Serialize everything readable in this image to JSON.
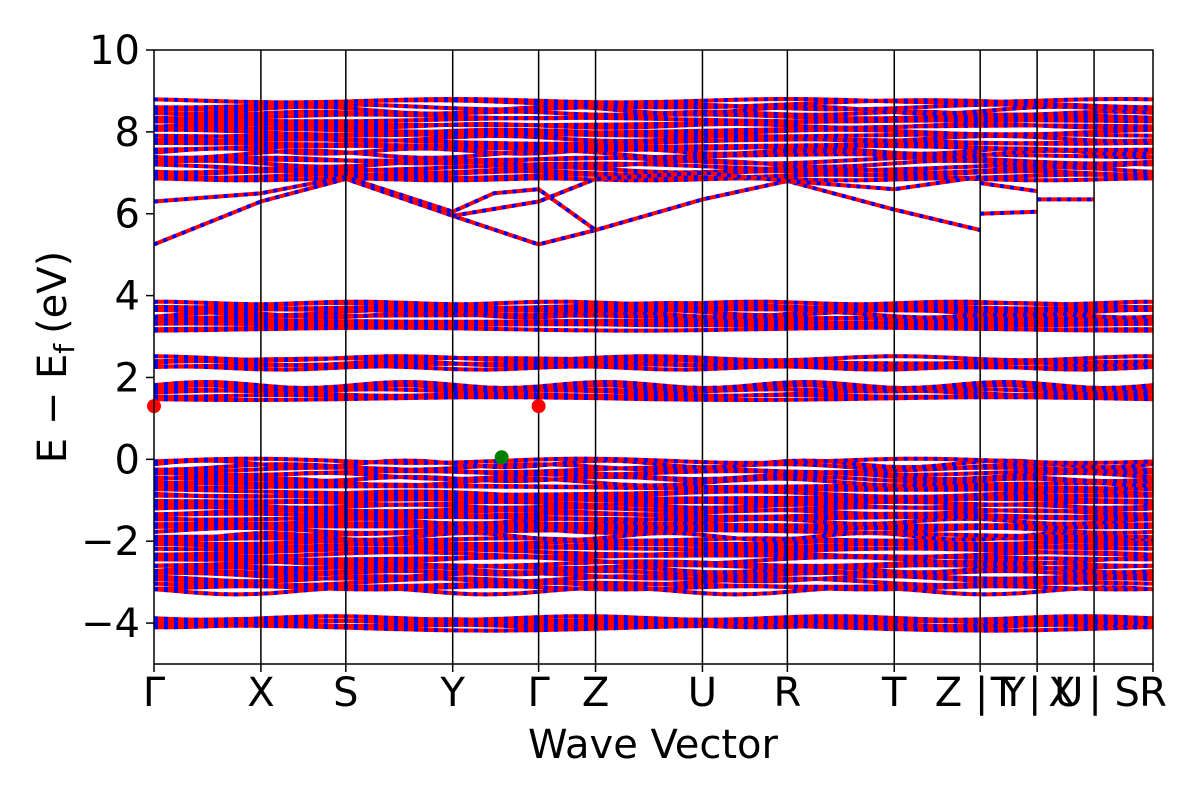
{
  "chart_data": {
    "type": "line",
    "xlabel": "Wave Vector",
    "ylabel_main": "E − E",
    "ylabel_sub": "f",
    "ylabel_unit": "(eV)",
    "ylim": [
      -5,
      10
    ],
    "yticks": [
      {
        "value": 10,
        "label": "10"
      },
      {
        "value": 8,
        "label": "8"
      },
      {
        "value": 6,
        "label": "6"
      },
      {
        "value": 4,
        "label": "4"
      },
      {
        "value": 2,
        "label": "2"
      },
      {
        "value": 0,
        "label": "0"
      },
      {
        "value": -2,
        "label": "−2"
      },
      {
        "value": -4,
        "label": "−4"
      }
    ],
    "xlim": [
      0,
      1
    ],
    "kpoints": [
      {
        "label": "Γ",
        "x": 0.0
      },
      {
        "label": "X",
        "x": 0.107
      },
      {
        "label": "S",
        "x": 0.192
      },
      {
        "label": "Y",
        "x": 0.299
      },
      {
        "label": "Γ",
        "x": 0.385
      },
      {
        "label": "Z",
        "x": 0.442
      },
      {
        "label": "U",
        "x": 0.549
      },
      {
        "label": "R",
        "x": 0.634
      },
      {
        "label": "T",
        "x": 0.741
      },
      {
        "label": "Z | Y",
        "x": 0.827
      },
      {
        "label": "T | U",
        "x": 0.884
      },
      {
        "label": "X | S",
        "x": 0.941
      },
      {
        "label": "R",
        "x": 1.0
      }
    ],
    "grid": false,
    "series_colors": {
      "spin_a": "#ff0000",
      "spin_b": "#0000ff"
    },
    "extremum_markers": [
      {
        "x": 0.0,
        "y": 1.3,
        "color": "#ff0000"
      },
      {
        "x": 0.385,
        "y": 1.3,
        "color": "#ff0000"
      },
      {
        "x": 0.348,
        "y": 0.05,
        "color": "#008000"
      }
    ]
  }
}
